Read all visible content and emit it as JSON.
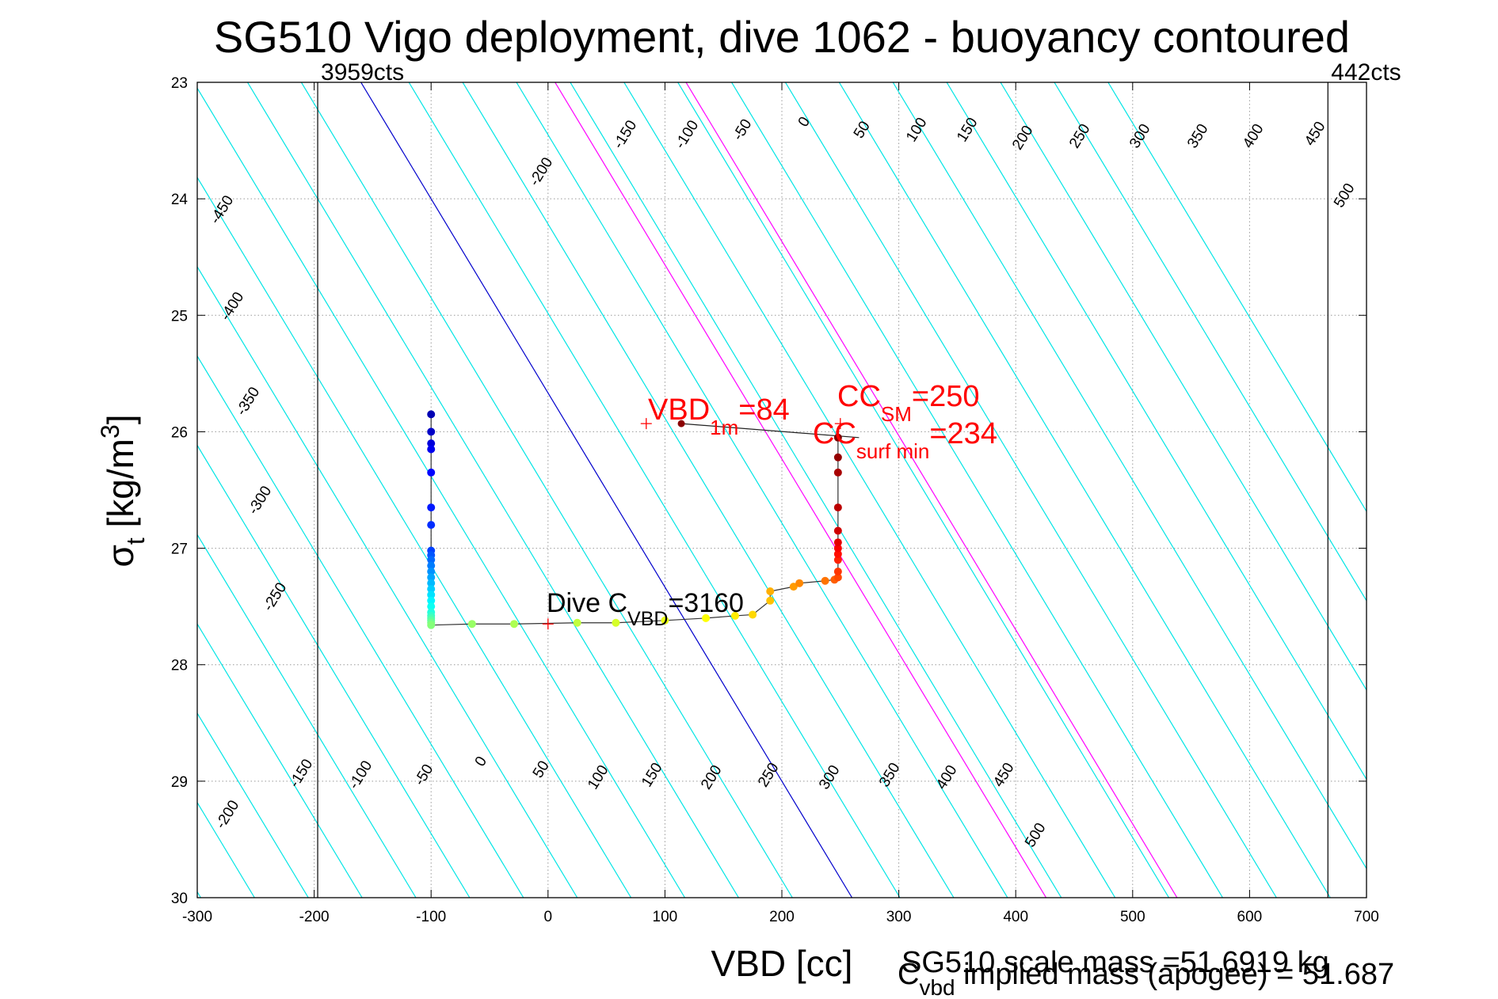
{
  "chart_data": {
    "type": "scatter",
    "title": "SG510 Vigo deployment, dive 1062 - buoyancy contoured",
    "xlabel": "VBD [cc]",
    "ylabel_main": "σ",
    "ylabel_sub": "t",
    "ylabel_rest": " [kg/m",
    "ylabel_sup": "3",
    "ylabel_end": "]",
    "xlim": [
      -300,
      700
    ],
    "ylim": [
      23,
      30
    ],
    "y_reversed": true,
    "grid": true,
    "x_ticks": [
      -300,
      -200,
      -100,
      0,
      100,
      200,
      300,
      400,
      500,
      600,
      700
    ],
    "y_ticks": [
      23,
      24,
      25,
      26,
      27,
      28,
      29,
      30
    ],
    "vbd_limits": [
      {
        "x": -197,
        "label": "3959cts"
      },
      {
        "x": 667,
        "label": "442cts"
      }
    ],
    "contours": {
      "slope_vbd_per_sigma": 60,
      "levels_cyan": [
        -450,
        -400,
        -350,
        -300,
        -250,
        -200,
        -150,
        -100,
        -50,
        50,
        100,
        150,
        250,
        300,
        350,
        400,
        450,
        500
      ],
      "level_blue": 0,
      "levels_magenta": [
        200
      ],
      "magenta_lines_x_at_26": [
        186,
        298
      ],
      "labels_top": [
        "-450",
        "-400",
        "-350",
        "-300",
        "-250",
        "-200",
        "-150",
        "-100",
        "-50",
        "0",
        "50",
        "100",
        "150",
        "200",
        "250",
        "300",
        "350",
        "400",
        "450",
        "500"
      ],
      "labels_bottom": [
        "-200",
        "-150",
        "-100",
        "-50",
        "0",
        "50",
        "100",
        "150",
        "200",
        "250",
        "300",
        "350",
        "400",
        "450",
        "500"
      ]
    },
    "series": [
      {
        "x": [
          -100,
          -100,
          -100,
          -100,
          -100,
          -100,
          -100,
          -100,
          -100,
          -100,
          -100,
          -100,
          -100,
          -100,
          -100,
          -100,
          -100,
          -100,
          -100,
          -100,
          -100,
          -100,
          -100,
          -100
        ],
        "y": [
          25.85,
          26.0,
          26.1,
          26.15,
          26.35,
          26.65,
          26.8,
          27.02,
          27.06,
          27.1,
          27.15,
          27.2,
          27.25,
          27.3,
          27.35,
          27.4,
          27.45,
          27.5,
          27.55,
          27.58,
          27.6,
          27.62,
          27.64,
          27.66
        ]
      },
      {
        "x": [
          -65,
          -29,
          25,
          58,
          100,
          135,
          160,
          175,
          190
        ],
        "y": [
          27.65,
          27.65,
          27.64,
          27.64,
          27.62,
          27.6,
          27.58,
          27.57,
          27.45
        ]
      },
      {
        "x": [
          190,
          210,
          215,
          237,
          245,
          248,
          248,
          248,
          248,
          248,
          248,
          248,
          248,
          248,
          248,
          248
        ],
        "y": [
          27.37,
          27.33,
          27.3,
          27.28,
          27.27,
          27.25,
          27.2,
          27.1,
          27.05,
          27.0,
          26.95,
          26.85,
          26.65,
          26.35,
          26.22,
          26.05
        ]
      }
    ],
    "cc_line": {
      "x": [
        114,
        266
      ],
      "y": [
        25.93,
        26.05
      ]
    },
    "reference_marks": [
      {
        "x": 84,
        "y": 25.93
      },
      {
        "x": 250,
        "y": 25.93
      },
      {
        "x": 0,
        "y": 27.65
      }
    ],
    "annotations": {
      "vbd1m": {
        "main": "VBD",
        "sub": "1m",
        "tail": "=84"
      },
      "ccsm": {
        "main": "CC",
        "sub": "SM",
        "tail": "=250"
      },
      "ccsurf": {
        "main": "CC",
        "sub": "surf min",
        "tail": "=234"
      },
      "divec": {
        "main": "Dive C",
        "sub": "VBD",
        "tail": "=3160"
      }
    },
    "footer": {
      "line1": "SG510 scale mass =51.6919 kg",
      "line2_main": "C",
      "line2_sub": "vbd",
      "line2_tail": " implied mass (apogee) = 51.687"
    },
    "colors": {
      "contour": "#00e5e5",
      "zero_contour": "#0000cc",
      "highlight_contour": "#ff00ff",
      "annotation": "#ff0000",
      "grid": "#999999"
    }
  }
}
